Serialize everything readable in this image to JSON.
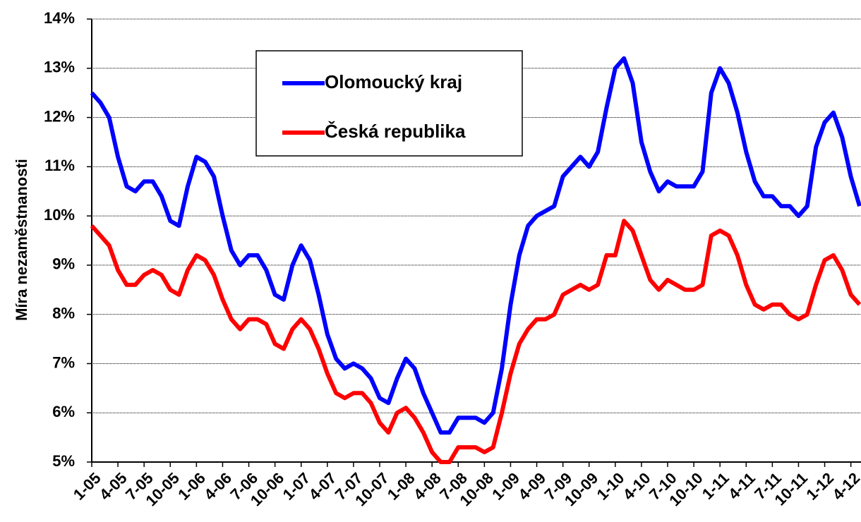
{
  "chart_data": {
    "type": "line",
    "y_label": "Míra nezaměstnanosti",
    "categories": [
      "1-05",
      null,
      null,
      "4-05",
      null,
      null,
      "7-05",
      null,
      null,
      "10-05",
      null,
      null,
      "1-06",
      null,
      null,
      "4-06",
      null,
      null,
      "7-06",
      null,
      null,
      "10-06",
      null,
      null,
      "1-07",
      null,
      null,
      "4-07",
      null,
      null,
      "7-07",
      null,
      null,
      "10-07",
      null,
      null,
      "1-08",
      null,
      null,
      "4-08",
      null,
      null,
      "7-08",
      null,
      null,
      "10-08",
      null,
      null,
      "1-09",
      null,
      null,
      "4-09",
      null,
      null,
      "7-09",
      null,
      null,
      "10-09",
      null,
      null,
      "1-10",
      null,
      null,
      "4-10",
      null,
      null,
      "7-10",
      null,
      null,
      "10-10",
      null,
      null,
      "1-11",
      null,
      null,
      "4-11",
      null,
      null,
      "7-11",
      null,
      null,
      "10-11",
      null,
      null,
      "1-12",
      null,
      null,
      "4-12",
      null
    ],
    "series": [
      {
        "name": "Olomoucký kraj",
        "color": "#0000ff",
        "values": [
          12.5,
          12.3,
          12.0,
          11.2,
          10.6,
          10.5,
          10.7,
          10.7,
          10.4,
          9.9,
          9.8,
          10.6,
          11.2,
          11.1,
          10.8,
          10.0,
          9.3,
          9.0,
          9.2,
          9.2,
          8.9,
          8.4,
          8.3,
          9.0,
          9.4,
          9.1,
          8.4,
          7.6,
          7.1,
          6.9,
          7.0,
          6.9,
          6.7,
          6.3,
          6.2,
          6.7,
          7.1,
          6.9,
          6.4,
          6.0,
          5.6,
          5.6,
          5.9,
          5.9,
          5.9,
          5.8,
          6.0,
          6.9,
          8.2,
          9.2,
          9.8,
          10.0,
          10.1,
          10.2,
          10.8,
          11.0,
          11.2,
          11.0,
          11.3,
          12.2,
          13.0,
          13.2,
          12.7,
          11.5,
          10.9,
          10.5,
          10.7,
          10.6,
          10.6,
          10.6,
          10.9,
          12.5,
          13.0,
          12.7,
          12.1,
          11.3,
          10.7,
          10.4,
          10.4,
          10.2,
          10.2,
          10.0,
          10.2,
          11.4,
          11.9,
          12.1,
          11.6,
          10.8,
          10.2
        ]
      },
      {
        "name": "Česká republika",
        "color": "#ff0000",
        "values": [
          9.8,
          9.6,
          9.4,
          8.9,
          8.6,
          8.6,
          8.8,
          8.9,
          8.8,
          8.5,
          8.4,
          8.9,
          9.2,
          9.1,
          8.8,
          8.3,
          7.9,
          7.7,
          7.9,
          7.9,
          7.8,
          7.4,
          7.3,
          7.7,
          7.9,
          7.7,
          7.3,
          6.8,
          6.4,
          6.3,
          6.4,
          6.4,
          6.2,
          5.8,
          5.6,
          6.0,
          6.1,
          5.9,
          5.6,
          5.2,
          5.0,
          5.0,
          5.3,
          5.3,
          5.3,
          5.2,
          5.3,
          6.0,
          6.8,
          7.4,
          7.7,
          7.9,
          7.9,
          8.0,
          8.4,
          8.5,
          8.6,
          8.5,
          8.6,
          9.2,
          9.2,
          9.9,
          9.7,
          9.2,
          8.7,
          8.5,
          8.7,
          8.6,
          8.5,
          8.5,
          8.6,
          9.6,
          9.7,
          9.6,
          9.2,
          8.6,
          8.2,
          8.1,
          8.2,
          8.2,
          8.0,
          7.9,
          8.0,
          8.6,
          9.1,
          9.2,
          8.9,
          8.4,
          8.2
        ]
      }
    ],
    "ylim": [
      5,
      14
    ],
    "yticks": [
      {
        "value": 5,
        "label": "5%"
      },
      {
        "value": 6,
        "label": "6%"
      },
      {
        "value": 7,
        "label": "7%"
      },
      {
        "value": 8,
        "label": "8%"
      },
      {
        "value": 9,
        "label": "9%"
      },
      {
        "value": 10,
        "label": "10%"
      },
      {
        "value": 11,
        "label": "11%"
      },
      {
        "value": 12,
        "label": "12%"
      },
      {
        "value": 13,
        "label": "13%"
      },
      {
        "value": 14,
        "label": "14%"
      }
    ],
    "grid": true
  }
}
